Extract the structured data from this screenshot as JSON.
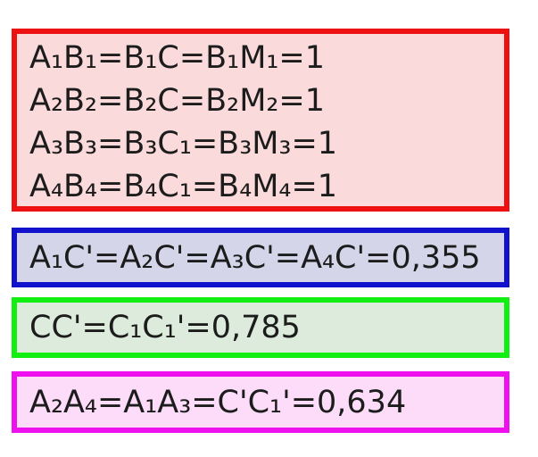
{
  "page": {
    "background_color": "#ffffff",
    "text_color": "#1c1c1c"
  },
  "boxes": {
    "red": {
      "name": "red-equations-box",
      "border_color": "#ee1111",
      "fill_color": "#fadada",
      "lines": [
        "A₁B₁=B₁C=B₁M₁=1",
        "A₂B₂=B₂C=B₂M₂=1",
        "A₃B₃=B₃C₁=B₃M₃=1",
        "A₄B₄=B₄C₁=B₄M₄=1"
      ]
    },
    "blue": {
      "name": "blue-equation-box",
      "border_color": "#1212cc",
      "fill_color": "#d5d5e9",
      "lines": [
        "A₁C'=A₂C'=A₃C'=A₄C'=0,355"
      ]
    },
    "green": {
      "name": "green-equation-box",
      "border_color": "#11ee11",
      "fill_color": "#dcebdb",
      "lines": [
        "CC'=C₁C₁'=0,785"
      ]
    },
    "magenta": {
      "name": "magenta-equation-box",
      "border_color": "#ee11ee",
      "fill_color": "#fcdcf8",
      "lines": [
        "A₂A₄=A₁A₃=C'C₁'=0,634"
      ]
    }
  }
}
